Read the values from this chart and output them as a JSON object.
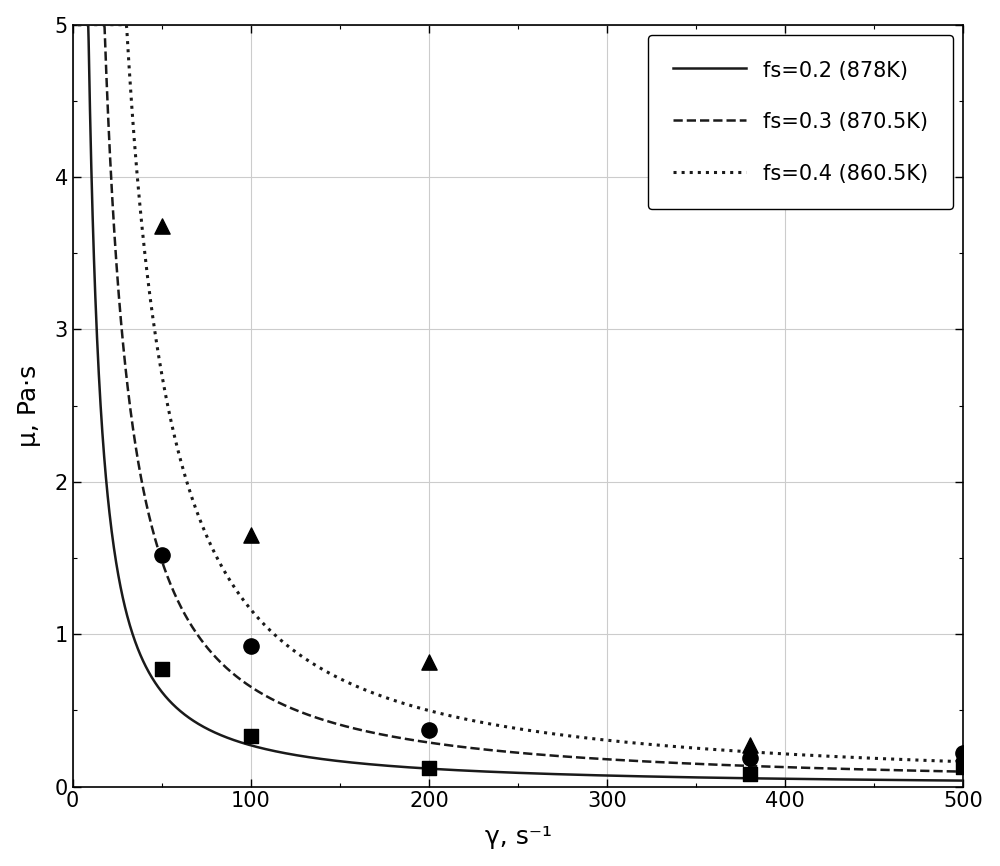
{
  "title": "",
  "xlabel": "γ, s⁻¹",
  "ylabel": "μ, Pa·s",
  "xlim": [
    0,
    500
  ],
  "ylim": [
    0,
    5
  ],
  "xticks": [
    0,
    100,
    200,
    300,
    400,
    500
  ],
  "yticks": [
    0,
    1,
    2,
    3,
    4,
    5
  ],
  "background_color": "#ffffff",
  "grid_color": "#cccccc",
  "curves": [
    {
      "label": "fs=0.2 (878K)",
      "linestyle": "solid",
      "color": "#1a1a1a",
      "linewidth": 1.8,
      "K": 68.0,
      "m": 1.2
    },
    {
      "label": "fs=0.3 (870.5K)",
      "linestyle": "dashed",
      "color": "#1a1a1a",
      "linewidth": 1.8,
      "K": 150.0,
      "m": 1.18
    },
    {
      "label": "fs=0.4 (860.5K)",
      "linestyle": "dotted",
      "color": "#1a1a1a",
      "linewidth": 2.2,
      "K": 320.0,
      "m": 1.22
    }
  ],
  "scatter_square": {
    "x": [
      50,
      100,
      200,
      380,
      500
    ],
    "y": [
      0.77,
      0.33,
      0.12,
      0.08,
      0.13
    ],
    "marker": "s",
    "color": "#000000",
    "size": 110,
    "zorder": 5
  },
  "scatter_circle": {
    "x": [
      50,
      100,
      200,
      380,
      500
    ],
    "y": [
      1.52,
      0.92,
      0.37,
      0.19,
      0.22
    ],
    "marker": "o",
    "color": "#000000",
    "size": 120,
    "zorder": 5
  },
  "scatter_triangle": {
    "x": [
      50,
      100,
      200,
      380,
      500
    ],
    "y": [
      3.68,
      1.65,
      0.82,
      0.27,
      0.22
    ],
    "marker": "^",
    "color": "#000000",
    "size": 120,
    "zorder": 5
  },
  "legend_loc": "upper right",
  "legend_fontsize": 15,
  "axis_label_fontsize": 18,
  "tick_fontsize": 15,
  "fig_width": 10.0,
  "fig_height": 8.66,
  "dpi": 100
}
